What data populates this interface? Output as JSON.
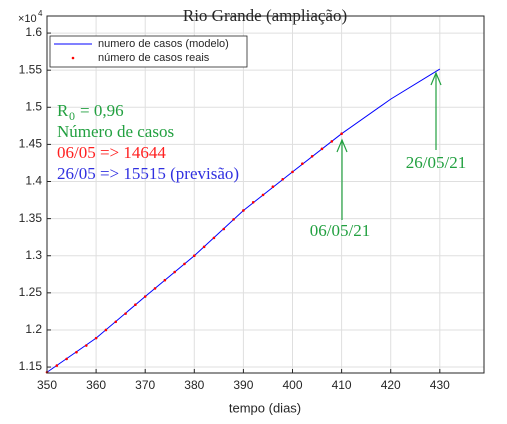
{
  "chart_data": {
    "type": "line",
    "title": "Rio Grande (ampliação)",
    "x_label": "tempo (dias)",
    "y_exponent_base": "×10",
    "y_exponent": "4",
    "xlim": [
      350,
      439
    ],
    "ylim": [
      1.142,
      1.623
    ],
    "xticks": [
      350,
      360,
      370,
      380,
      390,
      400,
      410,
      420,
      430
    ],
    "yticks": [
      1.15,
      1.2,
      1.25,
      1.3,
      1.35,
      1.4,
      1.45,
      1.5,
      1.55,
      1.6
    ],
    "grid": true,
    "legend_position": "upper-left",
    "series": [
      {
        "name": "numero de casos (modelo)",
        "color": "#0000ff",
        "style": "line",
        "x": [
          350,
          360,
          370,
          380,
          390,
          400,
          410,
          420,
          430
        ],
        "values": [
          1.143,
          1.189,
          1.245,
          1.3,
          1.361,
          1.413,
          1.4644,
          1.511,
          1.5515
        ]
      },
      {
        "name": "número de casos reais",
        "color": "#ff0000",
        "style": "dots",
        "x": [
          350,
          352,
          354,
          356,
          358,
          360,
          362,
          364,
          366,
          368,
          370,
          372,
          374,
          376,
          378,
          380,
          382,
          384,
          386,
          388,
          390,
          392,
          394,
          396,
          398,
          400,
          402,
          404,
          406,
          408,
          410
        ],
        "values": [
          1.143,
          1.152,
          1.161,
          1.17,
          1.179,
          1.189,
          1.2,
          1.211,
          1.222,
          1.234,
          1.245,
          1.256,
          1.267,
          1.278,
          1.289,
          1.3,
          1.312,
          1.324,
          1.336,
          1.349,
          1.361,
          1.372,
          1.382,
          1.393,
          1.403,
          1.413,
          1.424,
          1.434,
          1.444,
          1.454,
          1.4644
        ]
      }
    ],
    "annotations": {
      "r0_symbol": "R",
      "r0_subscript": "0",
      "r0_value": "= 0,96",
      "cases_heading": "Número de casos",
      "line_0605": "06/05 => 14644",
      "line_2605": "26/05 => 15515 (previsão)",
      "arrow_label_1": "06/05/21",
      "arrow_label_2": "26/05/21"
    }
  }
}
